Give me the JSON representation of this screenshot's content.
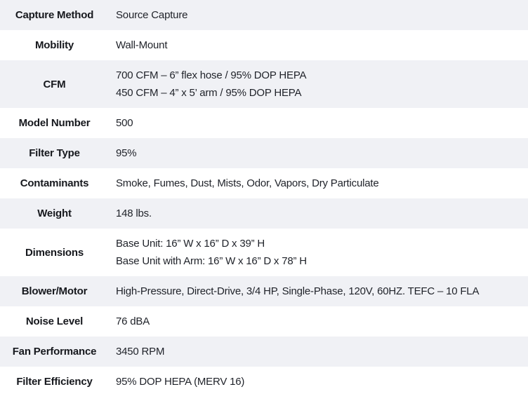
{
  "colors": {
    "row_shaded": "#f0f1f5",
    "row_plain": "#ffffff",
    "label_text": "#16181d",
    "value_text": "#1f2229"
  },
  "table": {
    "rows": [
      {
        "label": "Capture Method",
        "shaded": true,
        "values": [
          "Source Capture"
        ]
      },
      {
        "label": "Mobility",
        "shaded": false,
        "values": [
          "Wall-Mount"
        ]
      },
      {
        "label": "CFM",
        "shaded": true,
        "values": [
          "700 CFM – 6” flex hose / 95% DOP HEPA",
          "450 CFM – 4” x 5’ arm / 95% DOP HEPA"
        ]
      },
      {
        "label": "Model Number",
        "shaded": false,
        "values": [
          "500"
        ]
      },
      {
        "label": "Filter Type",
        "shaded": true,
        "values": [
          "95%"
        ]
      },
      {
        "label": "Contaminants",
        "shaded": false,
        "values": [
          "Smoke, Fumes, Dust, Mists, Odor, Vapors, Dry Particulate"
        ]
      },
      {
        "label": "Weight",
        "shaded": true,
        "values": [
          "148 lbs."
        ]
      },
      {
        "label": "Dimensions",
        "shaded": false,
        "values": [
          "Base Unit: 16” W x 16” D x 39” H",
          "Base Unit with Arm: 16” W x 16” D x 78” H"
        ]
      },
      {
        "label": "Blower/Motor",
        "shaded": true,
        "values": [
          "High-Pressure, Direct-Drive, 3/4 HP, Single-Phase, 120V, 60HZ. TEFC – 10 FLA"
        ]
      },
      {
        "label": "Noise Level",
        "shaded": false,
        "values": [
          "76 dBA"
        ]
      },
      {
        "label": "Fan Performance",
        "shaded": true,
        "values": [
          "3450 RPM"
        ]
      },
      {
        "label": "Filter Efficiency",
        "shaded": false,
        "values": [
          "95% DOP HEPA (MERV 16)"
        ]
      }
    ]
  }
}
